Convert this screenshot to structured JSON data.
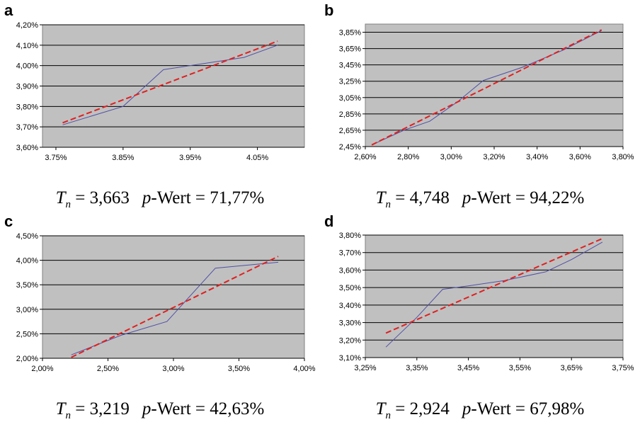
{
  "chart_data": [
    {
      "type": "line",
      "panel_label": "a",
      "x_ticks": [
        3.75,
        3.85,
        3.95,
        4.05
      ],
      "x_tick_labels": [
        "3.75%",
        "3.85%",
        "3.95%",
        "4.05%"
      ],
      "y_ticks": [
        3.6,
        3.7,
        3.8,
        3.9,
        4.0,
        4.1,
        4.2
      ],
      "y_tick_labels": [
        "3,60%",
        "3,70%",
        "3,80%",
        "3,90%",
        "4,00%",
        "4,10%",
        "4,20%"
      ],
      "xlim": [
        3.73,
        4.12
      ],
      "ylim": [
        3.6,
        4.2
      ],
      "grid": "horizontal",
      "series": [
        {
          "style": "solid",
          "color": "#5050a8",
          "x": [
            3.76,
            3.85,
            3.91,
            3.97,
            4.03,
            4.08
          ],
          "y": [
            3.71,
            3.8,
            3.98,
            4.01,
            4.04,
            4.1
          ]
        },
        {
          "style": "dashed",
          "color": "#e02020",
          "x": [
            3.76,
            4.08
          ],
          "y": [
            3.72,
            4.12
          ]
        }
      ],
      "caption": {
        "stat": "T",
        "stat_sub": "n",
        "stat_value": "= 3,663",
        "p_label": "p",
        "p_text": "-Wert = 71,77%"
      }
    },
    {
      "type": "line",
      "panel_label": "b",
      "x_ticks": [
        2.6,
        2.8,
        3.0,
        3.2,
        3.4,
        3.6,
        3.8
      ],
      "x_tick_labels": [
        "2,60%",
        "2,80%",
        "3,00%",
        "3,20%",
        "3,40%",
        "3,60%",
        "3,80%"
      ],
      "y_ticks": [
        2.45,
        2.65,
        2.85,
        3.05,
        3.25,
        3.45,
        3.65,
        3.85
      ],
      "y_tick_labels": [
        "2,45%",
        "2,65%",
        "2,85%",
        "3,05%",
        "3,25%",
        "3,45%",
        "3,65%",
        "3,85%"
      ],
      "xlim": [
        2.6,
        3.8
      ],
      "ylim": [
        2.45,
        3.95
      ],
      "grid": "horizontal",
      "series": [
        {
          "style": "solid",
          "color": "#5050a8",
          "x": [
            2.63,
            2.78,
            2.9,
            3.03,
            3.15,
            3.33,
            3.52,
            3.7
          ],
          "y": [
            2.47,
            2.65,
            2.76,
            3.0,
            3.26,
            3.42,
            3.63,
            3.87
          ]
        },
        {
          "style": "dashed",
          "color": "#e02020",
          "x": [
            2.63,
            3.7
          ],
          "y": [
            2.47,
            3.88
          ]
        }
      ],
      "caption": {
        "stat": "T",
        "stat_sub": "n",
        "stat_value": "= 4,748",
        "p_label": "p",
        "p_text": "-Wert = 94,22%"
      }
    },
    {
      "type": "line",
      "panel_label": "c",
      "x_ticks": [
        2.0,
        2.5,
        3.0,
        3.5,
        4.0
      ],
      "x_tick_labels": [
        "2,00%",
        "2,50%",
        "3,00%",
        "3,50%",
        "4,00%"
      ],
      "y_ticks": [
        2.0,
        2.5,
        3.0,
        3.5,
        4.0,
        4.5
      ],
      "y_tick_labels": [
        "2,00%",
        "2,50%",
        "3,00%",
        "3,50%",
        "4,00%",
        "4,50%"
      ],
      "xlim": [
        2.0,
        4.0
      ],
      "ylim": [
        2.0,
        4.5
      ],
      "grid": "horizontal",
      "series": [
        {
          "style": "solid",
          "color": "#5050a8",
          "x": [
            2.22,
            2.6,
            2.95,
            3.32,
            3.8
          ],
          "y": [
            2.07,
            2.47,
            2.75,
            3.84,
            3.96
          ]
        },
        {
          "style": "dashed",
          "color": "#e02020",
          "x": [
            2.22,
            3.8
          ],
          "y": [
            2.02,
            4.08
          ]
        }
      ],
      "caption": {
        "stat": "T",
        "stat_sub": "n",
        "stat_value": "= 3,219",
        "p_label": "p",
        "p_text": "-Wert = 42,63%"
      }
    },
    {
      "type": "line",
      "panel_label": "d",
      "x_ticks": [
        3.25,
        3.35,
        3.45,
        3.55,
        3.65,
        3.75
      ],
      "x_tick_labels": [
        "3,25%",
        "3,35%",
        "3,45%",
        "3,55%",
        "3,65%",
        "3,75%"
      ],
      "y_ticks": [
        3.1,
        3.2,
        3.3,
        3.4,
        3.5,
        3.6,
        3.7,
        3.8
      ],
      "y_tick_labels": [
        "3,10%",
        "3,20%",
        "3,30%",
        "3,40%",
        "3,50%",
        "3,60%",
        "3,70%",
        "3,80%"
      ],
      "xlim": [
        3.25,
        3.75
      ],
      "ylim": [
        3.1,
        3.8
      ],
      "grid": "horizontal",
      "series": [
        {
          "style": "solid",
          "color": "#5050a8",
          "x": [
            3.29,
            3.35,
            3.4,
            3.45,
            3.52,
            3.6,
            3.65,
            3.71
          ],
          "y": [
            3.16,
            3.33,
            3.49,
            3.51,
            3.54,
            3.59,
            3.66,
            3.76
          ]
        },
        {
          "style": "dashed",
          "color": "#e02020",
          "x": [
            3.29,
            3.71
          ],
          "y": [
            3.24,
            3.78
          ]
        }
      ],
      "caption": {
        "stat": "T",
        "stat_sub": "n",
        "stat_value": "= 2,924",
        "p_label": "p",
        "p_text": "-Wert = 67,98%"
      }
    }
  ]
}
